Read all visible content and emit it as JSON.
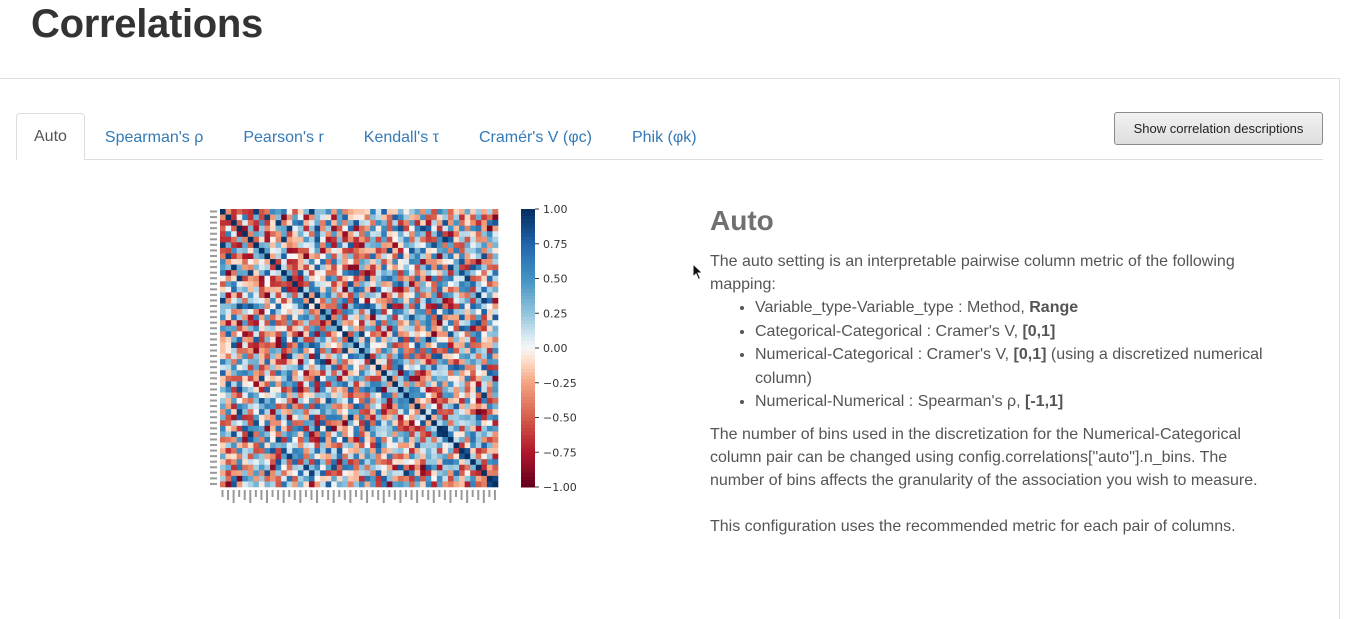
{
  "page": {
    "title": "Correlations"
  },
  "tabs": [
    {
      "label": "Auto",
      "active": true
    },
    {
      "label": "Spearman's ρ",
      "active": false
    },
    {
      "label": "Pearson's r",
      "active": false
    },
    {
      "label": "Kendall's τ",
      "active": false
    },
    {
      "label": "Cramér's V (φc)",
      "active": false
    },
    {
      "label": "Phik (φk)",
      "active": false
    }
  ],
  "toolbar": {
    "show_descriptions_label": "Show correlation descriptions"
  },
  "description": {
    "heading": "Auto",
    "intro": "The auto setting is an interpretable pairwise column metric of the following mapping:",
    "mappings": [
      {
        "text": "Variable_type-Variable_type : Method, ",
        "bold": "Range",
        "suffix": ""
      },
      {
        "text": "Categorical-Categorical : Cramer's V, ",
        "bold": "[0,1]",
        "suffix": ""
      },
      {
        "text": "Numerical-Categorical : Cramer's V, ",
        "bold": "[0,1]",
        "suffix": " (using a discretized numerical column)"
      },
      {
        "text": "Numerical-Numerical : Spearman's ρ, ",
        "bold": "[-1,1]",
        "suffix": ""
      }
    ],
    "bins_note": "The number of bins used in the discretization for the Numerical-Categorical column pair can be changed using config.correlations[\"auto\"].n_bins. The number of bins affects the granularity of the association you wish to measure.",
    "recommendation": "This configuration uses the recommended metric for each pair of columns."
  },
  "chart_data": {
    "type": "heatmap",
    "matrix_size": 50,
    "diagonal_value": 1.0,
    "colormap": "RdBu",
    "colorbar": {
      "range": [
        -1.0,
        1.0
      ],
      "ticks": [
        "1.00",
        "0.75",
        "0.50",
        "0.25",
        "0.00",
        "−0.25",
        "−0.50",
        "−0.75",
        "−1.00"
      ]
    },
    "colors": {
      "strong_positive": "#08306b",
      "positive": "#4393c3",
      "neutral": "#f7f7f7",
      "negative": "#d6604d",
      "strong_negative": "#67001f"
    }
  },
  "colors": {
    "link": "#337ab7",
    "title": "#333333",
    "text": "#555555"
  }
}
